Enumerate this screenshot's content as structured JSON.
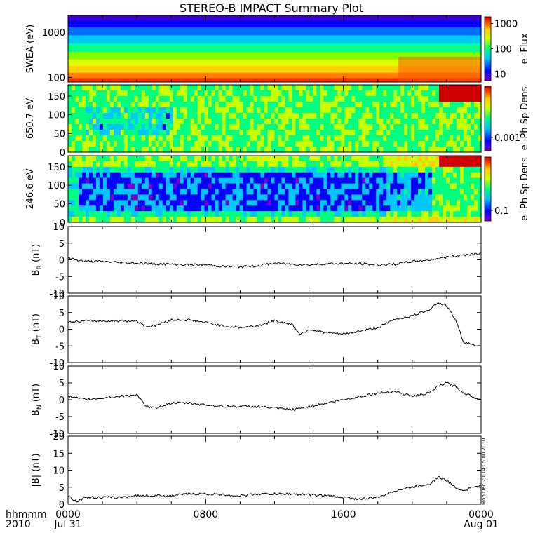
{
  "title": "STEREO-B IMPACT Summary Plot",
  "footer": {
    "line1_left": "hhmmm",
    "line2_left": "2010",
    "x_ticks": [
      {
        "hour": 0,
        "line1": "0000",
        "line2": "Jul 31"
      },
      {
        "hour": 8,
        "line1": "0800",
        "line2": ""
      },
      {
        "hour": 16,
        "line1": "1600",
        "line2": ""
      },
      {
        "hour": 24,
        "line1": "0000",
        "line2": "Aug 01"
      }
    ],
    "timestamp": "Mon Dec 20 14:05:00 2010"
  },
  "colors": {
    "line": "#000000",
    "spectrogram_scale": [
      "#7a00c8",
      "#0000ff",
      "#00c8ff",
      "#00ff80",
      "#c8ff00",
      "#ffd000",
      "#ff4000",
      "#d00000"
    ]
  },
  "chart_data": [
    {
      "type": "heatmap",
      "ylabel": "SWEA (eV)",
      "y_scale": "log",
      "ylim": [
        90,
        2000
      ],
      "yticks": [
        "1000",
        "100"
      ],
      "colorbar_label": "e- Flux",
      "colorbar_ticks": [
        "1000",
        "100",
        "10"
      ],
      "xlim_hours": [
        0,
        24
      ]
    },
    {
      "type": "heatmap",
      "ylabel": "650.7 eV",
      "ylim": [
        0,
        180
      ],
      "yticks": [
        "150",
        "100",
        "50",
        "0"
      ],
      "colorbar_label": "e- Ph Sp Dens",
      "colorbar_ticks": [
        "0.001"
      ],
      "xlim_hours": [
        0,
        24
      ]
    },
    {
      "type": "heatmap",
      "ylabel": "246.6 eV",
      "ylim": [
        0,
        180
      ],
      "yticks": [
        "150",
        "100",
        "50",
        "0"
      ],
      "colorbar_label": "e- Ph Sp Dens",
      "colorbar_ticks": [
        "0.1"
      ],
      "xlim_hours": [
        0,
        24
      ]
    },
    {
      "type": "line",
      "ylabel_main": "B",
      "ylabel_sub": "R",
      "ylabel_unit": "(nT)",
      "ylim": [
        -10,
        10
      ],
      "yticks": [
        "10",
        "5",
        "0",
        "-5",
        "-10"
      ],
      "x_hours": [
        0,
        1,
        2,
        3,
        4,
        5,
        6,
        7,
        8,
        9,
        10,
        11,
        12,
        13,
        14,
        15,
        16,
        17,
        18,
        19,
        20,
        21,
        22,
        23,
        24
      ],
      "values": [
        0.5,
        -0.5,
        -0.5,
        -0.8,
        -1.0,
        -1.2,
        -1.3,
        -1.5,
        -1.5,
        -2.0,
        -2.1,
        -1.8,
        -1.0,
        -1.3,
        -1.5,
        -1.2,
        -1.1,
        -1.2,
        -1.5,
        -1.3,
        -0.5,
        0,
        0.8,
        1.5,
        2.0
      ]
    },
    {
      "type": "line",
      "ylabel_main": "B",
      "ylabel_sub": "T",
      "ylabel_unit": "(nT)",
      "ylim": [
        -10,
        10
      ],
      "yticks": [
        "10",
        "5",
        "0",
        "-5",
        "-10"
      ],
      "x_hours": [
        0,
        1,
        2,
        3,
        4,
        4.5,
        5,
        6,
        7,
        8,
        9,
        10,
        11,
        12,
        13,
        13.5,
        14,
        15,
        16,
        17,
        18,
        19,
        20,
        21,
        21.5,
        22,
        22.5,
        23,
        24
      ],
      "values": [
        2.0,
        2.5,
        2.5,
        2.5,
        2.5,
        0.8,
        1.0,
        2.8,
        2.8,
        2.0,
        1.0,
        0.5,
        1.0,
        2.5,
        1.5,
        -1.5,
        0,
        -1.0,
        -1.5,
        -0.5,
        0.5,
        3.0,
        4.0,
        6.0,
        8.0,
        7.0,
        3.0,
        -4.0,
        -5.0
      ]
    },
    {
      "type": "line",
      "ylabel_main": "B",
      "ylabel_sub": "N",
      "ylabel_unit": "(nT)",
      "ylim": [
        -10,
        10
      ],
      "yticks": [
        "10",
        "5",
        "0",
        "-5",
        "-10"
      ],
      "x_hours": [
        0,
        1,
        2,
        3,
        4,
        4.5,
        5,
        6,
        7,
        8,
        9,
        10,
        11,
        12,
        13,
        14,
        15,
        16,
        17,
        18,
        19,
        20,
        21,
        21.5,
        22,
        22.5,
        23,
        24
      ],
      "values": [
        1.0,
        0,
        0.5,
        1.0,
        1.5,
        -2.0,
        -2.5,
        -1.0,
        -1.0,
        -1.5,
        -2.0,
        -2.0,
        -2.0,
        -2.5,
        -3.0,
        -2.0,
        -1.0,
        0,
        1.0,
        2.0,
        2.5,
        1.0,
        2.0,
        4.0,
        5.0,
        4.0,
        2.0,
        0
      ]
    },
    {
      "type": "line",
      "ylabel_main": "|B|",
      "ylabel_sub": "",
      "ylabel_unit": "(nT)",
      "ylim": [
        0,
        20
      ],
      "yticks": [
        "20",
        "15",
        "10",
        "5",
        "0"
      ],
      "x_hours": [
        0,
        0.5,
        1,
        2,
        3,
        4,
        5,
        6,
        7,
        8,
        9,
        10,
        11,
        12,
        13,
        14,
        15,
        16,
        17,
        18,
        19,
        20,
        21,
        21.5,
        22,
        22.5,
        23,
        23.5,
        24
      ],
      "values": [
        2.5,
        0.8,
        2.0,
        2.0,
        2.0,
        2.5,
        2.5,
        2.5,
        3.0,
        3.0,
        2.8,
        2.5,
        3.0,
        3.0,
        3.0,
        2.8,
        2.5,
        2.0,
        1.5,
        2.0,
        4.0,
        5.0,
        6.0,
        8.0,
        7.0,
        5.0,
        4.0,
        5.0,
        5.5
      ]
    }
  ]
}
